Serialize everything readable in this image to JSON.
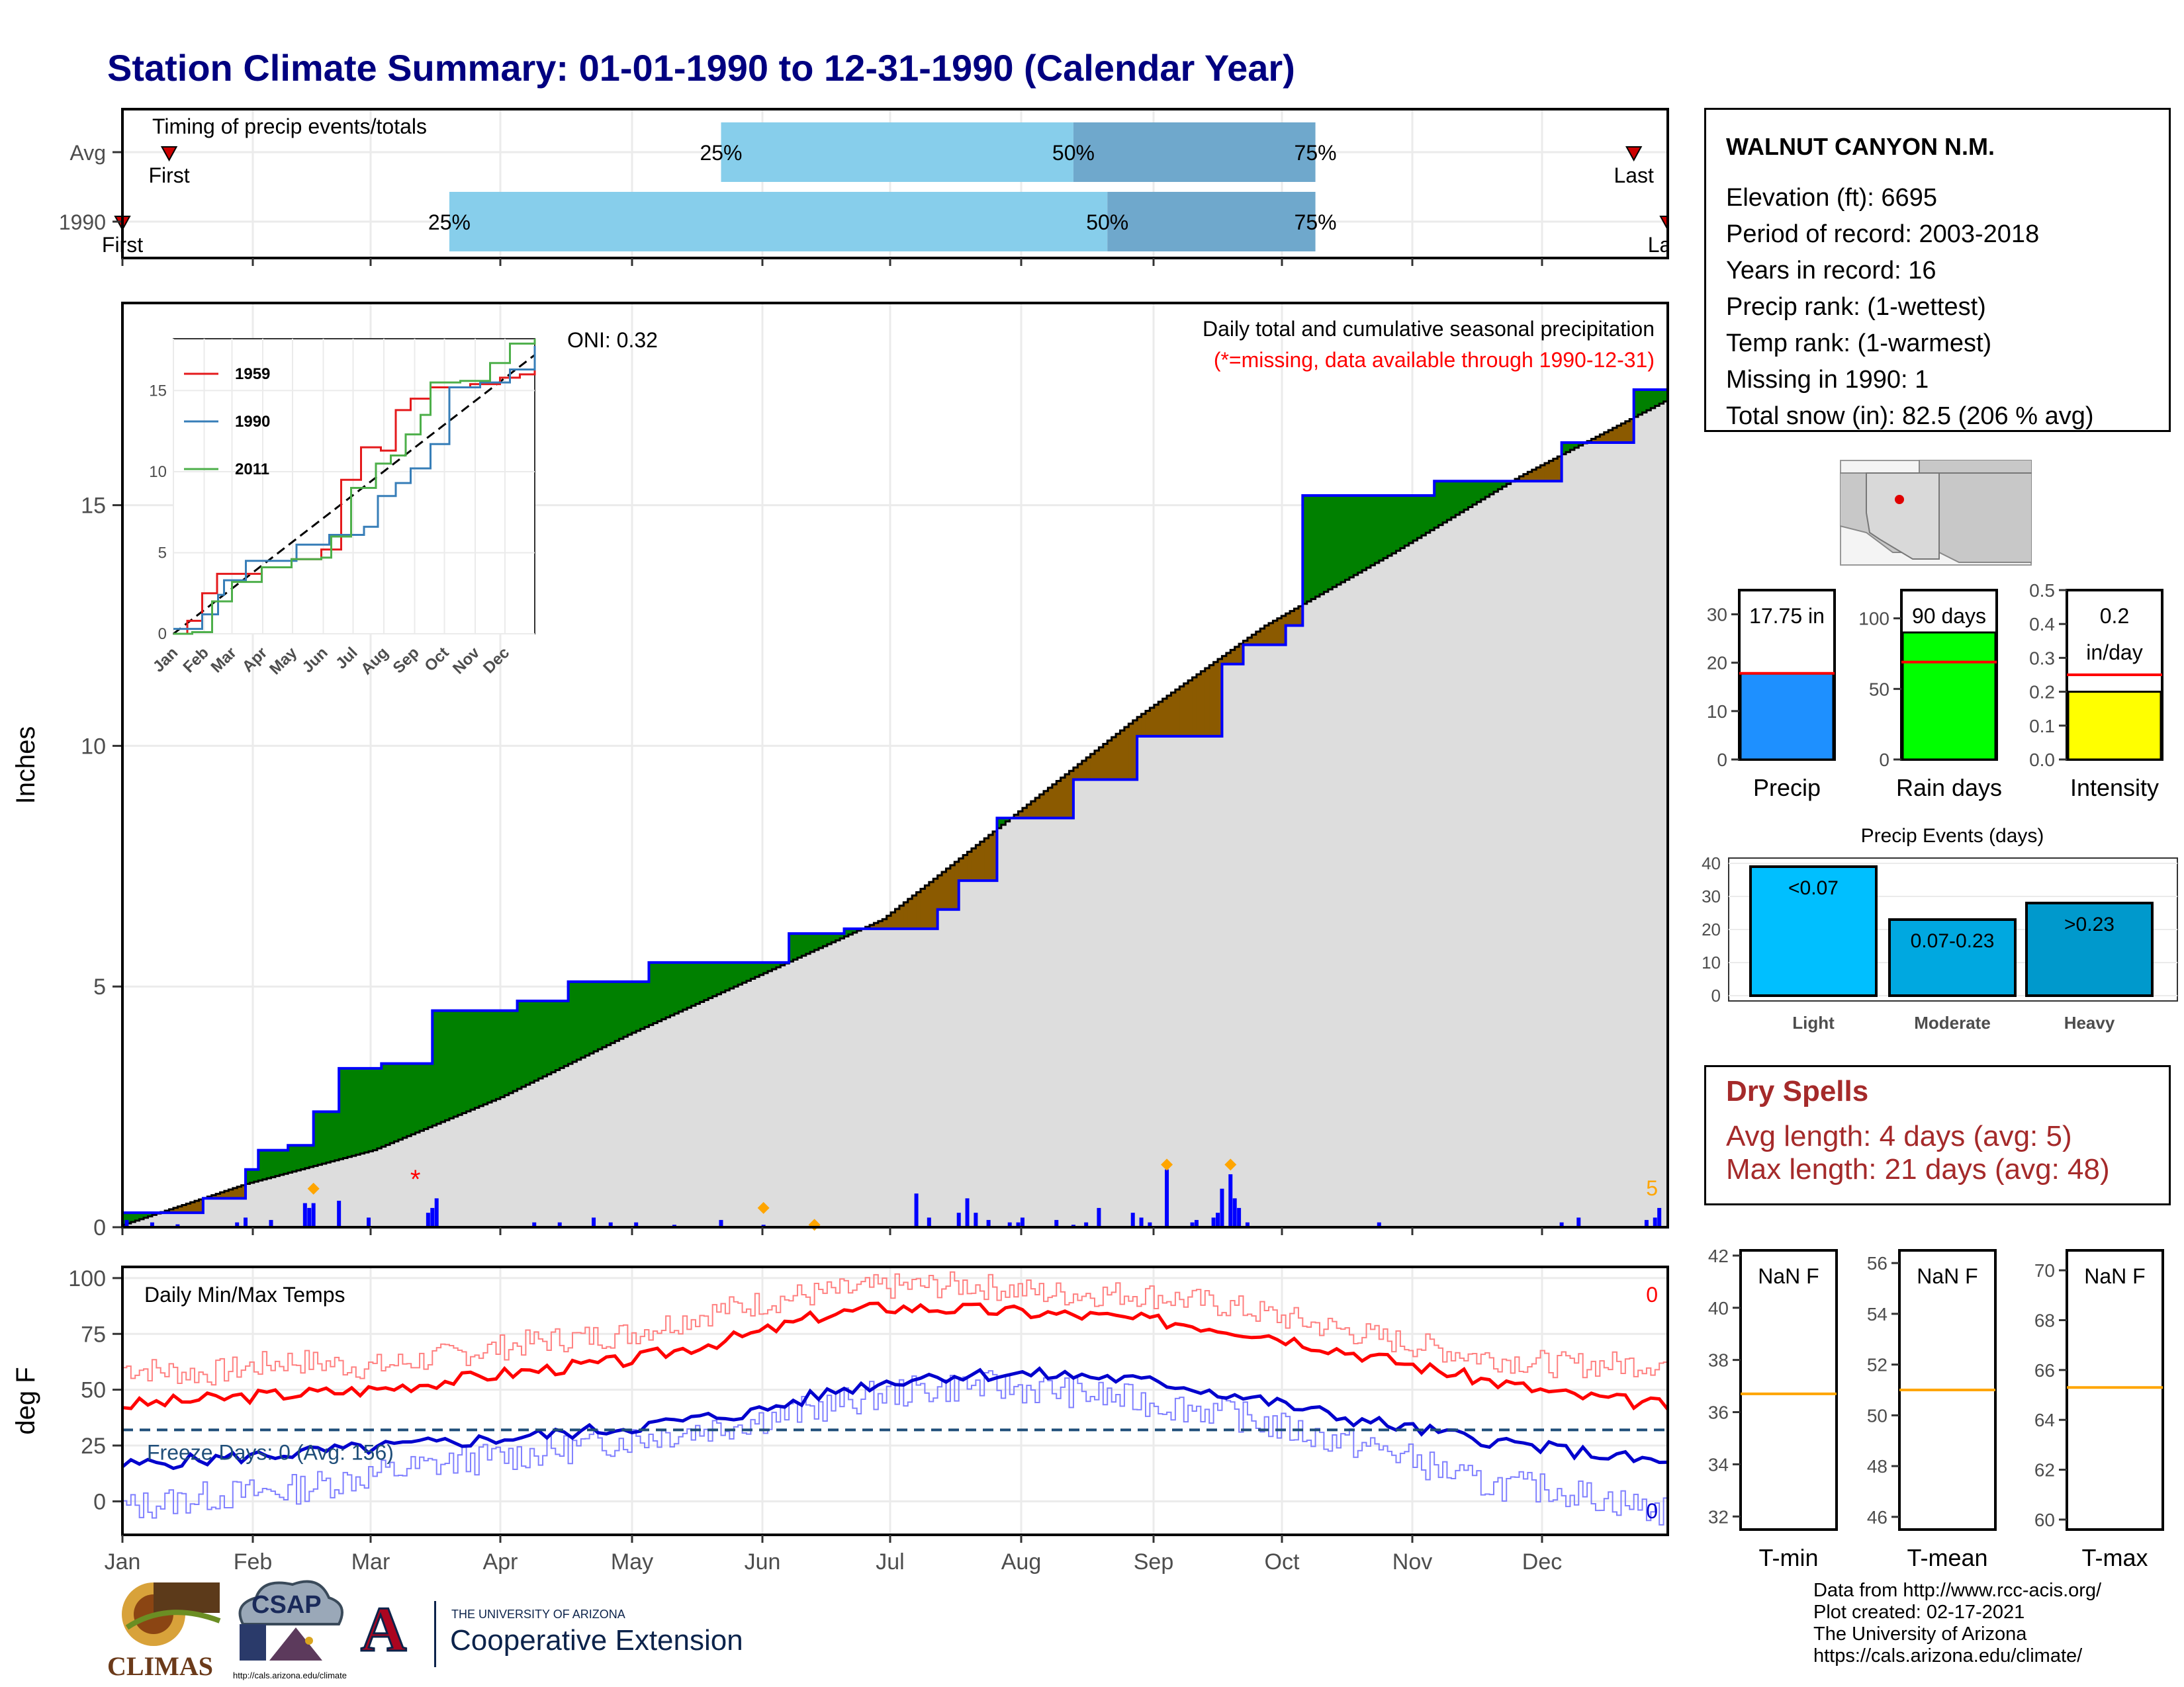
{
  "title": "Station Climate Summary: 01-01-1990 to 12-31-1990 (Calendar Year)",
  "months": [
    "Jan",
    "Feb",
    "Mar",
    "Apr",
    "May",
    "Jun",
    "Jul",
    "Aug",
    "Sep",
    "Oct",
    "Nov",
    "Dec"
  ],
  "timing": {
    "caption": "Timing of precip events/totals",
    "rows": [
      {
        "label": "Avg",
        "first_doy": 12,
        "p25": 142,
        "p50": 225,
        "p75": 282,
        "last_doy": 357,
        "first_label": "First",
        "last_label": "Last",
        "p25_label": "25%",
        "p50_label": "50%",
        "p75_label": "75%"
      },
      {
        "label": "1990",
        "first_doy": 1,
        "p25": 78,
        "p50": 233,
        "p75": 282,
        "last_doy": 365,
        "first_label": "First",
        "last_label": "Last",
        "p25_label": "25%",
        "p50_label": "50%",
        "p75_label": "75%"
      }
    ],
    "colors": {
      "p25_50": "#87ceeb",
      "p50_75": "#6fa8cc",
      "marker": "#cc0000"
    }
  },
  "precip": {
    "ylabel": "Inches",
    "yticks": [
      0,
      5,
      10,
      15
    ],
    "ylim": [
      0,
      19.2
    ],
    "oni_label": "ONI: 0.32",
    "caption": "Daily total and cumulative seasonal precipitation",
    "missing_note": "(*=missing, data available through 1990-12-31)",
    "count_label": "5",
    "colors": {
      "above": "#008000",
      "below": "#8b5a00",
      "observed": "#0000ff",
      "normal_fill": "#dddddd"
    },
    "avg_cumulative": [
      [
        1,
        0.05
      ],
      [
        30,
        0.9
      ],
      [
        60,
        1.6
      ],
      [
        90,
        2.7
      ],
      [
        120,
        4.0
      ],
      [
        150,
        5.2
      ],
      [
        180,
        6.4
      ],
      [
        210,
        8.5
      ],
      [
        240,
        10.6
      ],
      [
        270,
        12.5
      ],
      [
        300,
        14.0
      ],
      [
        330,
        15.6
      ],
      [
        365,
        17.2
      ]
    ],
    "obs_cumulative": [
      [
        1,
        0.3
      ],
      [
        12,
        0.3
      ],
      [
        20,
        0.6
      ],
      [
        30,
        1.2
      ],
      [
        33,
        1.6
      ],
      [
        40,
        1.7
      ],
      [
        46,
        2.4
      ],
      [
        52,
        3.3
      ],
      [
        62,
        3.4
      ],
      [
        74,
        4.5
      ],
      [
        94,
        4.7
      ],
      [
        106,
        5.1
      ],
      [
        125,
        5.5
      ],
      [
        158,
        6.1
      ],
      [
        171,
        6.2
      ],
      [
        193,
        6.6
      ],
      [
        198,
        7.2
      ],
      [
        207,
        8.5
      ],
      [
        225,
        9.3
      ],
      [
        240,
        10.2
      ],
      [
        260,
        11.7
      ],
      [
        265,
        12.1
      ],
      [
        275,
        12.5
      ],
      [
        279,
        15.2
      ],
      [
        310,
        15.5
      ],
      [
        340,
        16.3
      ],
      [
        357,
        17.4
      ],
      [
        365,
        17.75
      ]
    ],
    "daily_bars": [
      [
        2,
        0.15
      ],
      [
        8,
        0.1
      ],
      [
        14,
        0.06
      ],
      [
        28,
        0.1
      ],
      [
        30,
        0.2
      ],
      [
        36,
        0.15
      ],
      [
        44,
        0.5
      ],
      [
        45,
        0.4
      ],
      [
        46,
        0.5
      ],
      [
        52,
        0.55
      ],
      [
        59,
        0.2
      ],
      [
        73,
        0.3
      ],
      [
        74,
        0.4
      ],
      [
        75,
        0.6
      ],
      [
        98,
        0.1
      ],
      [
        104,
        0.1
      ],
      [
        112,
        0.2
      ],
      [
        116,
        0.1
      ],
      [
        122,
        0.1
      ],
      [
        131,
        0.05
      ],
      [
        142,
        0.15
      ],
      [
        152,
        0.05
      ],
      [
        188,
        0.7
      ],
      [
        191,
        0.2
      ],
      [
        198,
        0.3
      ],
      [
        200,
        0.6
      ],
      [
        202,
        0.3
      ],
      [
        205,
        0.15
      ],
      [
        210,
        0.1
      ],
      [
        212,
        0.1
      ],
      [
        213,
        0.2
      ],
      [
        221,
        0.15
      ],
      [
        225,
        0.05
      ],
      [
        228,
        0.1
      ],
      [
        231,
        0.4
      ],
      [
        239,
        0.3
      ],
      [
        241,
        0.2
      ],
      [
        243,
        0.1
      ],
      [
        247,
        1.2
      ],
      [
        253,
        0.1
      ],
      [
        254,
        0.15
      ],
      [
        258,
        0.2
      ],
      [
        259,
        0.3
      ],
      [
        260,
        0.8
      ],
      [
        262,
        1.1
      ],
      [
        263,
        0.6
      ],
      [
        264,
        0.4
      ],
      [
        266,
        0.1
      ],
      [
        297,
        0.1
      ],
      [
        340,
        0.1
      ],
      [
        344,
        0.2
      ],
      [
        360,
        0.15
      ],
      [
        362,
        0.2
      ],
      [
        363,
        0.4
      ]
    ],
    "missing_marks": [
      [
        70,
        1.0
      ]
    ],
    "event_marks": [
      [
        46,
        0.8
      ],
      [
        152,
        0.4
      ],
      [
        164,
        0.05
      ],
      [
        247,
        1.3
      ],
      [
        262,
        1.3
      ]
    ]
  },
  "inset": {
    "ylim": [
      0,
      18.2
    ],
    "yticks": [
      0,
      5,
      10,
      15
    ],
    "series": [
      {
        "name": "1959",
        "color": "#e41a1c",
        "points": [
          [
            1,
            0
          ],
          [
            15,
            0.8
          ],
          [
            30,
            2.5
          ],
          [
            45,
            3.7
          ],
          [
            60,
            3.7
          ],
          [
            90,
            4.1
          ],
          [
            120,
            4.6
          ],
          [
            150,
            5.2
          ],
          [
            170,
            9.5
          ],
          [
            190,
            11.5
          ],
          [
            210,
            11.3
          ],
          [
            225,
            13.8
          ],
          [
            240,
            14.5
          ],
          [
            260,
            15.2
          ],
          [
            300,
            15.4
          ],
          [
            330,
            15.8
          ],
          [
            350,
            16.0
          ],
          [
            365,
            17.1
          ]
        ]
      },
      {
        "name": "1990",
        "color": "#377eb8",
        "points": [
          [
            1,
            0.3
          ],
          [
            30,
            1.2
          ],
          [
            46,
            2.4
          ],
          [
            52,
            3.3
          ],
          [
            74,
            4.5
          ],
          [
            125,
            5.5
          ],
          [
            158,
            6.1
          ],
          [
            193,
            6.6
          ],
          [
            207,
            8.5
          ],
          [
            225,
            9.3
          ],
          [
            240,
            10.2
          ],
          [
            260,
            11.7
          ],
          [
            279,
            15.2
          ],
          [
            310,
            15.5
          ],
          [
            340,
            16.3
          ],
          [
            365,
            17.75
          ]
        ]
      },
      {
        "name": "2011",
        "color": "#4daf4a",
        "points": [
          [
            1,
            0
          ],
          [
            20,
            0.1
          ],
          [
            40,
            2.0
          ],
          [
            60,
            3.2
          ],
          [
            90,
            4.1
          ],
          [
            120,
            4.6
          ],
          [
            150,
            4.7
          ],
          [
            160,
            6.0
          ],
          [
            180,
            9.0
          ],
          [
            205,
            10.5
          ],
          [
            220,
            11.0
          ],
          [
            235,
            12.3
          ],
          [
            250,
            13.5
          ],
          [
            260,
            15.5
          ],
          [
            290,
            15.6
          ],
          [
            320,
            16.7
          ],
          [
            340,
            17.9
          ],
          [
            365,
            18.2
          ]
        ]
      }
    ],
    "avg_color": "#000000"
  },
  "temps": {
    "ylabel": "deg F",
    "caption": "Daily Min/Max Temps",
    "freeze_label": "Freeze Days: 0 (Avg: 156)",
    "freeze_line": 32,
    "yticks": [
      0,
      25,
      50,
      75,
      100
    ],
    "ylim": [
      -15,
      105
    ],
    "max_count": "0",
    "min_count": "0",
    "avg_max": [
      [
        1,
        43
      ],
      [
        30,
        47
      ],
      [
        60,
        50
      ],
      [
        90,
        57
      ],
      [
        120,
        63
      ],
      [
        150,
        75
      ],
      [
        165,
        83
      ],
      [
        180,
        87
      ],
      [
        200,
        86
      ],
      [
        230,
        83
      ],
      [
        250,
        80
      ],
      [
        270,
        75
      ],
      [
        290,
        67
      ],
      [
        320,
        55
      ],
      [
        340,
        48
      ],
      [
        365,
        43
      ]
    ],
    "avg_min": [
      [
        1,
        16
      ],
      [
        30,
        20
      ],
      [
        60,
        24
      ],
      [
        90,
        28
      ],
      [
        120,
        33
      ],
      [
        150,
        40
      ],
      [
        170,
        50
      ],
      [
        190,
        56
      ],
      [
        210,
        57
      ],
      [
        230,
        56
      ],
      [
        250,
        52
      ],
      [
        270,
        45
      ],
      [
        290,
        37
      ],
      [
        320,
        28
      ],
      [
        340,
        23
      ],
      [
        365,
        17
      ]
    ],
    "obs_max": [
      [
        1,
        60
      ],
      [
        20,
        57
      ],
      [
        40,
        63
      ],
      [
        60,
        60
      ],
      [
        80,
        66
      ],
      [
        100,
        72
      ],
      [
        120,
        75
      ],
      [
        140,
        85
      ],
      [
        160,
        92
      ],
      [
        180,
        96
      ],
      [
        200,
        97
      ],
      [
        220,
        93
      ],
      [
        240,
        93
      ],
      [
        260,
        88
      ],
      [
        280,
        80
      ],
      [
        300,
        72
      ],
      [
        320,
        65
      ],
      [
        340,
        61
      ],
      [
        365,
        62
      ]
    ],
    "obs_min": [
      [
        1,
        -3
      ],
      [
        20,
        2
      ],
      [
        40,
        5
      ],
      [
        60,
        12
      ],
      [
        80,
        18
      ],
      [
        100,
        22
      ],
      [
        120,
        28
      ],
      [
        140,
        33
      ],
      [
        160,
        40
      ],
      [
        180,
        48
      ],
      [
        200,
        52
      ],
      [
        220,
        50
      ],
      [
        240,
        45
      ],
      [
        260,
        40
      ],
      [
        280,
        30
      ],
      [
        300,
        22
      ],
      [
        320,
        8
      ],
      [
        340,
        5
      ],
      [
        365,
        -5
      ]
    ],
    "colors": {
      "avg_max": "#ff0000",
      "avg_min": "#0000cd",
      "obs_max": "#ff8080",
      "obs_min": "#8080ff",
      "freeze": "#1f4e79"
    }
  },
  "station": {
    "name": "WALNUT CANYON N.M.",
    "lines": [
      "Elevation (ft): 6695",
      "Period of record: 2003-2018",
      "Years in record: 16",
      "Precip rank:  (1-wettest)",
      "Temp rank:  (1-warmest)",
      "Missing in 1990: 1",
      "Total snow (in): 82.5 (206 % avg)"
    ]
  },
  "gauges": [
    {
      "label": "Precip",
      "value": 17.75,
      "avg": 17.8,
      "ylim": [
        0,
        35
      ],
      "yticks": [
        0,
        10,
        20,
        30
      ],
      "box_label": [
        "17.75 in"
      ],
      "color": "#1e90ff"
    },
    {
      "label": "Rain days",
      "value": 90,
      "avg": 69,
      "ylim": [
        0,
        120
      ],
      "yticks": [
        0,
        50,
        100
      ],
      "box_label": [
        "90 days"
      ],
      "color": "#00ff00"
    },
    {
      "label": "Intensity",
      "value": 0.2,
      "avg": 0.25,
      "ylim": [
        0,
        0.5
      ],
      "yticks": [
        0.0,
        0.1,
        0.2,
        0.3,
        0.4,
        0.5
      ],
      "box_label": [
        "0.2",
        "in/day"
      ],
      "color": "#ffff00"
    }
  ],
  "events": {
    "title": "Precip Events (days)",
    "categories": [
      "Light",
      "Moderate",
      "Heavy"
    ],
    "values": [
      39,
      23,
      28
    ],
    "bar_labels": [
      "<0.07",
      "0.07-0.23",
      ">0.23"
    ],
    "colors": [
      "#00bfff",
      "#00a8e0",
      "#0099cc"
    ],
    "ylim": [
      0,
      40
    ],
    "yticks": [
      0,
      10,
      20,
      30,
      40
    ]
  },
  "dry": {
    "title": "Dry Spells",
    "avg_line": "Avg length: 4 days (avg: 5)",
    "max_line": "Max length: 21 days (avg: 48)"
  },
  "temp_gauges": [
    {
      "label": "T-min",
      "box_label": "NaN F",
      "avg": 36.7,
      "ylim": [
        31.5,
        42.2
      ],
      "yticks": [
        32,
        34,
        36,
        38,
        40,
        42
      ]
    },
    {
      "label": "T-mean",
      "box_label": "NaN F",
      "avg": 51,
      "ylim": [
        45.5,
        56.5
      ],
      "yticks": [
        46,
        48,
        50,
        52,
        54,
        56
      ]
    },
    {
      "label": "T-max",
      "box_label": "NaN F",
      "avg": 65.3,
      "ylim": [
        59.6,
        70.8
      ],
      "yticks": [
        60,
        62,
        64,
        66,
        68,
        70
      ]
    }
  ],
  "logos": {
    "climas": "CLIMAS",
    "csap": "CSAP",
    "csap_url": "http://cals.arizona.edu/climate",
    "ua_small": "THE UNIVERSITY OF ARIZONA",
    "ua_big": "Cooperative Extension",
    "ua_letter": "A"
  },
  "credits": [
    "Data from http://www.rcc-acis.org/",
    "Plot created: 02-17-2021",
    "The University of Arizona",
    "https://cals.arizona.edu/climate/"
  ]
}
